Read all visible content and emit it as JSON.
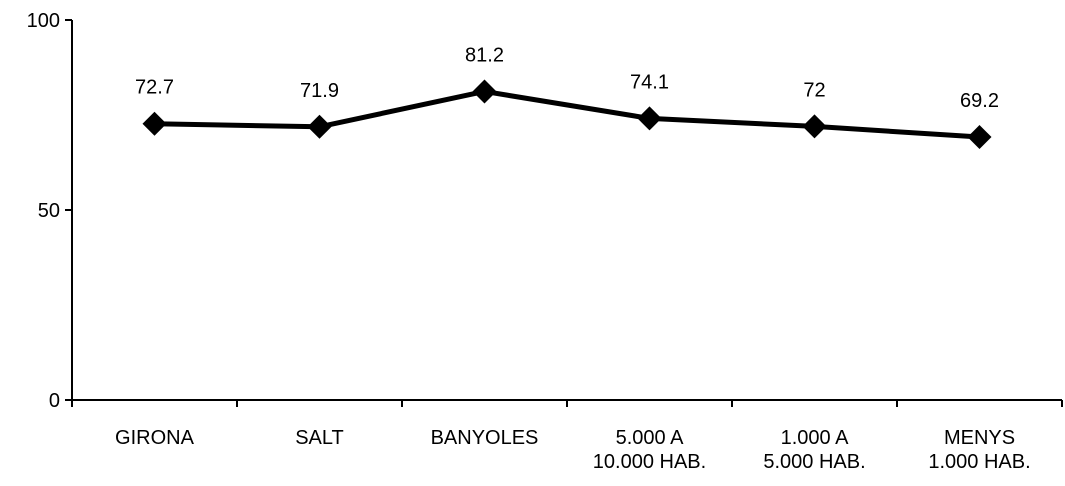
{
  "chart_data": {
    "type": "line",
    "categories": [
      "GIRONA",
      "SALT",
      "BANYOLES",
      "5.000 A\n10.000 HAB.",
      "1.000 A\n5.000 HAB.",
      "MENYS\n1.000 HAB."
    ],
    "values": [
      72.7,
      71.9,
      81.2,
      74.1,
      72,
      69.2
    ],
    "color": "#000000",
    "ylim": [
      0,
      100
    ],
    "yticks": [
      0,
      50,
      100
    ],
    "grid": false
  }
}
